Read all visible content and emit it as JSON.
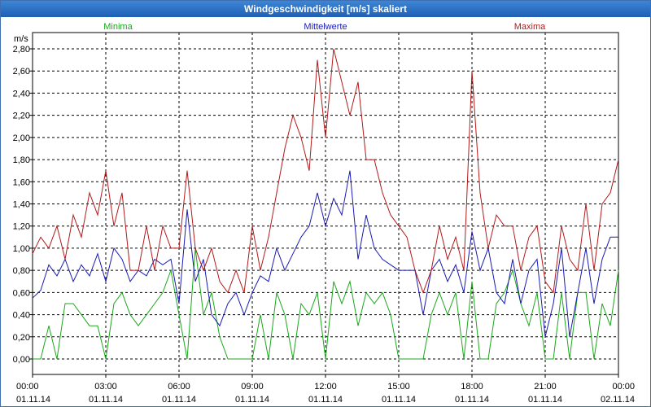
{
  "window": {
    "title": "Windgeschwindigkeit [m/s] skaliert"
  },
  "chart_data": {
    "type": "line",
    "ylabel": "m/s",
    "ylim": [
      0,
      2.8
    ],
    "yticks": [
      "0,00",
      "0,20",
      "0,40",
      "0,60",
      "0,80",
      "1,00",
      "1,20",
      "1,40",
      "1,60",
      "1,80",
      "2,00",
      "2,20",
      "2,40",
      "2,60",
      "2,80"
    ],
    "xlim": [
      "01.11.14 00:00",
      "02.11.14 00:00"
    ],
    "xticks": [
      {
        "time": "00:00",
        "date": "01.11.14"
      },
      {
        "time": "03:00",
        "date": "01.11.14"
      },
      {
        "time": "06:00",
        "date": "01.11.14"
      },
      {
        "time": "09:00",
        "date": "01.11.14"
      },
      {
        "time": "12:00",
        "date": "01.11.14"
      },
      {
        "time": "15:00",
        "date": "01.11.14"
      },
      {
        "time": "18:00",
        "date": "01.11.14"
      },
      {
        "time": "21:00",
        "date": "01.11.14"
      },
      {
        "time": "00:00",
        "date": "02.11.14"
      }
    ],
    "grid": true,
    "legend_position": "top",
    "series": [
      {
        "name": "Minima",
        "color": "#1aa81a",
        "x": [
          "00:00",
          "00:20",
          "00:40",
          "01:00",
          "01:20",
          "01:40",
          "02:00",
          "02:20",
          "02:40",
          "03:00",
          "03:20",
          "03:40",
          "04:00",
          "04:20",
          "04:40",
          "05:00",
          "05:20",
          "05:40",
          "06:00",
          "06:20",
          "06:40",
          "07:00",
          "07:20",
          "07:40",
          "08:00",
          "08:20",
          "08:40",
          "09:00",
          "09:20",
          "09:40",
          "10:00",
          "10:20",
          "10:40",
          "11:00",
          "11:20",
          "11:40",
          "12:00",
          "12:20",
          "12:40",
          "13:00",
          "13:20",
          "13:40",
          "14:00",
          "14:20",
          "14:40",
          "15:00",
          "15:20",
          "15:40",
          "16:00",
          "16:20",
          "16:40",
          "17:00",
          "17:20",
          "17:40",
          "18:00",
          "18:20",
          "18:40",
          "19:00",
          "19:20",
          "19:40",
          "20:00",
          "20:20",
          "20:40",
          "21:00",
          "21:20",
          "21:40",
          "22:00",
          "22:20",
          "22:40",
          "23:00",
          "23:20",
          "23:40",
          "24:00"
        ],
        "values": [
          0.0,
          0.0,
          0.3,
          0.0,
          0.5,
          0.5,
          0.4,
          0.3,
          0.3,
          0.0,
          0.5,
          0.6,
          0.4,
          0.3,
          0.4,
          0.5,
          0.6,
          0.8,
          0.4,
          0.0,
          1.0,
          0.4,
          0.6,
          0.2,
          0.0,
          0.0,
          0.0,
          0.0,
          0.4,
          0.0,
          0.6,
          0.4,
          0.0,
          0.5,
          0.4,
          0.6,
          0.0,
          0.7,
          0.5,
          0.7,
          0.3,
          0.6,
          0.5,
          0.6,
          0.4,
          0.0,
          0.0,
          0.0,
          0.0,
          0.4,
          0.6,
          0.4,
          0.6,
          0.0,
          0.7,
          0.0,
          0.0,
          0.5,
          0.6,
          0.8,
          0.5,
          0.3,
          0.6,
          0.0,
          0.0,
          0.6,
          0.0,
          0.6,
          0.6,
          0.0,
          0.5,
          0.3,
          0.8
        ]
      },
      {
        "name": "Mittelwerte",
        "color": "#1a1ab4",
        "x": [
          "00:00",
          "00:20",
          "00:40",
          "01:00",
          "01:20",
          "01:40",
          "02:00",
          "02:20",
          "02:40",
          "03:00",
          "03:20",
          "03:40",
          "04:00",
          "04:20",
          "04:40",
          "05:00",
          "05:20",
          "05:40",
          "06:00",
          "06:20",
          "06:40",
          "07:00",
          "07:20",
          "07:40",
          "08:00",
          "08:20",
          "08:40",
          "09:00",
          "09:20",
          "09:40",
          "10:00",
          "10:20",
          "10:40",
          "11:00",
          "11:20",
          "11:40",
          "12:00",
          "12:20",
          "12:40",
          "13:00",
          "13:20",
          "13:40",
          "14:00",
          "14:20",
          "14:40",
          "15:00",
          "15:20",
          "15:40",
          "16:00",
          "16:20",
          "16:40",
          "17:00",
          "17:20",
          "17:40",
          "18:00",
          "18:20",
          "18:40",
          "19:00",
          "19:20",
          "19:40",
          "20:00",
          "20:20",
          "20:40",
          "21:00",
          "21:20",
          "21:40",
          "22:00",
          "22:20",
          "22:40",
          "23:00",
          "23:20",
          "23:40",
          "24:00"
        ],
        "values": [
          0.55,
          0.62,
          0.85,
          0.75,
          0.9,
          0.7,
          0.85,
          0.75,
          0.95,
          0.7,
          1.0,
          0.9,
          0.7,
          0.8,
          0.75,
          0.9,
          0.85,
          0.9,
          0.5,
          1.35,
          0.7,
          0.9,
          0.4,
          0.3,
          0.5,
          0.6,
          0.4,
          0.6,
          0.75,
          0.7,
          1.0,
          0.8,
          0.95,
          1.1,
          1.2,
          1.5,
          1.2,
          1.45,
          1.3,
          1.7,
          0.9,
          1.3,
          1.0,
          0.9,
          0.85,
          0.8,
          0.8,
          0.8,
          0.4,
          0.8,
          0.9,
          0.7,
          0.85,
          0.6,
          1.15,
          0.8,
          1.0,
          0.6,
          0.5,
          0.9,
          0.5,
          0.8,
          0.9,
          0.2,
          0.5,
          1.0,
          0.2,
          0.6,
          1.0,
          0.5,
          0.9,
          1.1,
          1.1
        ]
      },
      {
        "name": "Maxima",
        "color": "#b41a1a",
        "x": [
          "00:00",
          "00:20",
          "00:40",
          "01:00",
          "01:20",
          "01:40",
          "02:00",
          "02:20",
          "02:40",
          "03:00",
          "03:20",
          "03:40",
          "04:00",
          "04:20",
          "04:40",
          "05:00",
          "05:20",
          "05:40",
          "06:00",
          "06:20",
          "06:40",
          "07:00",
          "07:20",
          "07:40",
          "08:00",
          "08:20",
          "08:40",
          "09:00",
          "09:20",
          "09:40",
          "10:00",
          "10:20",
          "10:40",
          "11:00",
          "11:20",
          "11:40",
          "12:00",
          "12:20",
          "12:40",
          "13:00",
          "13:20",
          "13:40",
          "14:00",
          "14:20",
          "14:40",
          "15:00",
          "15:20",
          "15:40",
          "16:00",
          "16:20",
          "16:40",
          "17:00",
          "17:20",
          "17:40",
          "18:00",
          "18:20",
          "18:40",
          "19:00",
          "19:20",
          "19:40",
          "20:00",
          "20:20",
          "20:40",
          "21:00",
          "21:20",
          "21:40",
          "22:00",
          "22:20",
          "22:40",
          "23:00",
          "23:20",
          "23:40",
          "24:00"
        ],
        "values": [
          0.95,
          1.1,
          1.0,
          1.2,
          0.9,
          1.3,
          1.1,
          1.5,
          1.3,
          1.7,
          1.2,
          1.5,
          0.8,
          0.8,
          1.2,
          0.8,
          1.2,
          1.0,
          1.0,
          1.7,
          1.0,
          0.8,
          1.0,
          0.7,
          0.6,
          0.8,
          0.6,
          1.2,
          0.8,
          1.1,
          1.5,
          1.9,
          2.2,
          2.0,
          1.7,
          2.7,
          2.0,
          2.8,
          2.5,
          2.2,
          2.5,
          1.8,
          1.8,
          1.5,
          1.3,
          1.2,
          1.1,
          0.8,
          0.6,
          0.8,
          1.2,
          0.9,
          1.1,
          0.8,
          2.6,
          1.5,
          1.0,
          1.3,
          1.2,
          1.2,
          0.8,
          1.1,
          1.2,
          0.7,
          0.6,
          1.2,
          0.9,
          0.8,
          1.4,
          0.8,
          1.4,
          1.5,
          1.8
        ]
      }
    ]
  }
}
